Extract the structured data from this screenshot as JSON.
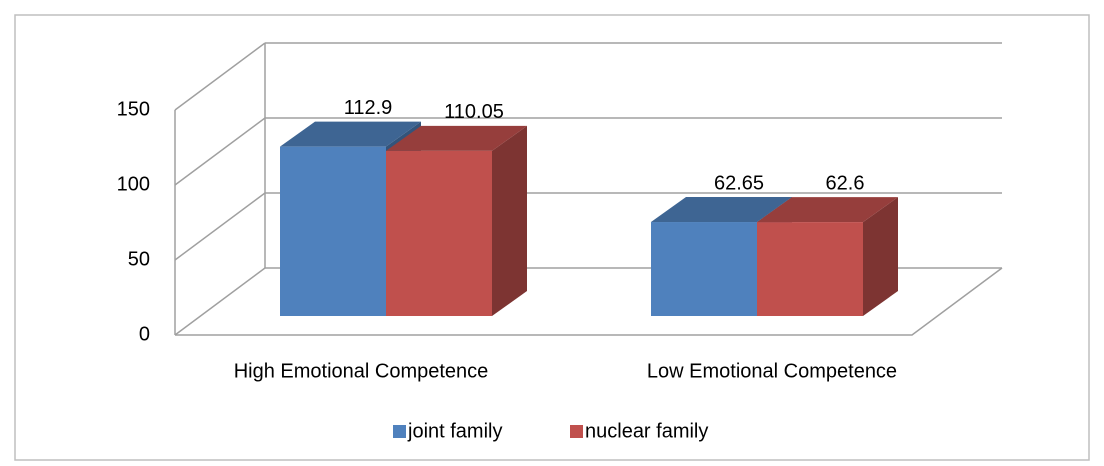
{
  "chart_data": {
    "type": "bar3d",
    "categories": [
      "High Emotional Competence",
      "Low Emotional Competence"
    ],
    "series": [
      {
        "name": "joint family",
        "color": "#4f81bd",
        "values": [
          112.9,
          62.65
        ]
      },
      {
        "name": "nuclear family",
        "color": "#c0504d",
        "values": [
          110.05,
          62.6
        ]
      }
    ],
    "ylim": [
      0,
      150
    ],
    "yticks": [
      0,
      50,
      100,
      150
    ],
    "grid": true,
    "legend": "bottom"
  }
}
